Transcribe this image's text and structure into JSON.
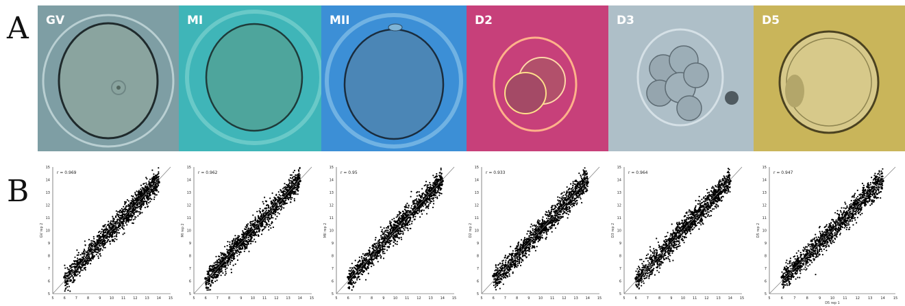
{
  "panels": {
    "a": "A",
    "b": "B"
  },
  "stages": [
    {
      "label": "GV",
      "background": "#7e9ea4"
    },
    {
      "label": "MI",
      "background": "#3fb5b8"
    },
    {
      "label": "MII",
      "background": "#3c8fd6"
    },
    {
      "label": "D2",
      "background": "#c7407a"
    },
    {
      "label": "D3",
      "background": "#aebfc8"
    },
    {
      "label": "D5",
      "background": "#c9b55a"
    }
  ],
  "chart_data": [
    {
      "type": "scatter",
      "panel": "GV",
      "annotation": "r = 0.969",
      "ylabel": "GV rep 2",
      "xlim": [
        5,
        15
      ],
      "ylim": [
        5,
        15
      ],
      "x_ticks": [
        5,
        6,
        7,
        8,
        9,
        10,
        11,
        12,
        13,
        14,
        15
      ],
      "y_ticks": [
        5,
        6,
        7,
        8,
        9,
        10,
        11,
        12,
        13,
        14,
        15
      ],
      "x": [
        6,
        7,
        8,
        9,
        10,
        11,
        12,
        13,
        14
      ],
      "y": [
        6.3,
        7.1,
        8.0,
        9.0,
        10.1,
        11.0,
        12.1,
        13.0,
        13.8
      ]
    },
    {
      "type": "scatter",
      "panel": "MI",
      "annotation": "r = 0.962",
      "ylabel": "MI rep 2",
      "xlim": [
        5,
        15
      ],
      "ylim": [
        5,
        15
      ],
      "x_ticks": [
        5,
        6,
        7,
        8,
        9,
        10,
        11,
        12,
        13,
        14,
        15
      ],
      "y_ticks": [
        5,
        6,
        7,
        8,
        9,
        10,
        11,
        12,
        13,
        14,
        15
      ],
      "x": [
        6,
        7,
        8,
        9,
        10,
        11,
        12,
        13,
        14
      ],
      "y": [
        6.2,
        7.1,
        8.1,
        9.0,
        10.0,
        11.1,
        12.0,
        13.0,
        13.9
      ]
    },
    {
      "type": "scatter",
      "panel": "MII",
      "annotation": "r = 0.95",
      "ylabel": "MII rep 2",
      "xlim": [
        5,
        15
      ],
      "ylim": [
        5,
        15
      ],
      "x_ticks": [
        5,
        6,
        7,
        8,
        9,
        10,
        11,
        12,
        13,
        14,
        15
      ],
      "y_ticks": [
        5,
        6,
        7,
        8,
        9,
        10,
        11,
        12,
        13,
        14,
        15
      ],
      "x": [
        6,
        7,
        8,
        9,
        10,
        11,
        12,
        13,
        14
      ],
      "y": [
        6.3,
        7.2,
        8.0,
        9.1,
        10.0,
        11.0,
        12.0,
        13.1,
        13.9
      ]
    },
    {
      "type": "scatter",
      "panel": "D2",
      "annotation": "r = 0.933",
      "ylabel": "D2 rep 2",
      "xlim": [
        5,
        15
      ],
      "ylim": [
        5,
        15
      ],
      "x_ticks": [
        5,
        6,
        7,
        8,
        9,
        10,
        11,
        12,
        13,
        14,
        15
      ],
      "y_ticks": [
        5,
        6,
        7,
        8,
        9,
        10,
        11,
        12,
        13,
        14,
        15
      ],
      "x": [
        6,
        7,
        8,
        9,
        10,
        11,
        12,
        13,
        14
      ],
      "y": [
        6.4,
        7.2,
        8.1,
        9.0,
        10.0,
        11.0,
        12.0,
        12.9,
        13.8
      ]
    },
    {
      "type": "scatter",
      "panel": "D3",
      "annotation": "r = 0.964",
      "ylabel": "D3 rep 2",
      "xlim": [
        5,
        15
      ],
      "ylim": [
        5,
        15
      ],
      "x_ticks": [
        5,
        6,
        7,
        8,
        9,
        10,
        11,
        12,
        13,
        14,
        15
      ],
      "y_ticks": [
        5,
        6,
        7,
        8,
        9,
        10,
        11,
        12,
        13,
        14,
        15
      ],
      "x": [
        6,
        7,
        8,
        9,
        10,
        11,
        12,
        13,
        14
      ],
      "y": [
        6.2,
        7.1,
        8.0,
        9.0,
        10.1,
        11.0,
        12.0,
        13.0,
        13.9
      ]
    },
    {
      "type": "scatter",
      "panel": "D5",
      "annotation": "r = 0.947",
      "ylabel": "D5 rep 2",
      "xlabel": "D5 rep 1",
      "xlim": [
        5,
        15
      ],
      "ylim": [
        5,
        15
      ],
      "x_ticks": [
        5,
        6,
        7,
        8,
        9,
        10,
        11,
        12,
        13,
        14,
        15
      ],
      "y_ticks": [
        5,
        6,
        7,
        8,
        9,
        10,
        11,
        12,
        13,
        14,
        15
      ],
      "x": [
        6,
        7,
        8,
        9,
        10,
        11,
        12,
        13,
        14
      ],
      "y": [
        6.3,
        7.2,
        8.1,
        9.0,
        10.0,
        11.1,
        12.0,
        13.0,
        13.9
      ]
    }
  ]
}
